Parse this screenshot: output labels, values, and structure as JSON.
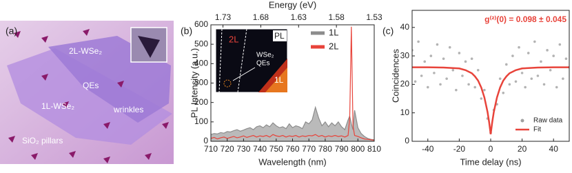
{
  "panel_a": {
    "label": "(a)",
    "labels": [
      "2L-WSe₂",
      "QEs",
      "1L-WSe₂",
      "wrinkles",
      "SiO₂ pillars"
    ]
  },
  "chart_data": [
    {
      "type": "line",
      "panel_label": "(b)",
      "xlabel": "Wavelength (nm)",
      "ylabel": "PL Intensity (a.u.)",
      "x2label": "Energy (eV)",
      "x": [
        710,
        712,
        714,
        716,
        718,
        720,
        722,
        724,
        726,
        728,
        730,
        732,
        734,
        736,
        738,
        740,
        742,
        744,
        746,
        748,
        750,
        752,
        754,
        756,
        758,
        760,
        762,
        764,
        766,
        768,
        770,
        772,
        774,
        776,
        778,
        780,
        782,
        784,
        786,
        788,
        790,
        792,
        794,
        795,
        796,
        797,
        798,
        800,
        802,
        804,
        806,
        808,
        810
      ],
      "series": [
        {
          "name": "1L",
          "color": "#8c8c8c",
          "area": true,
          "values": [
            35,
            40,
            38,
            45,
            42,
            50,
            48,
            55,
            60,
            52,
            58,
            65,
            70,
            60,
            75,
            80,
            70,
            85,
            75,
            95,
            80,
            70,
            75,
            65,
            90,
            70,
            80,
            75,
            65,
            100,
            90,
            110,
            175,
            120,
            80,
            100,
            75,
            95,
            80,
            100,
            75,
            60,
            110,
            130,
            90,
            60,
            160,
            70,
            40,
            25,
            15,
            10,
            8
          ]
        },
        {
          "name": "2L",
          "color": "#e8433a",
          "area": false,
          "values": [
            15,
            20,
            12,
            18,
            22,
            15,
            20,
            25,
            18,
            22,
            28,
            20,
            25,
            30,
            22,
            28,
            25,
            30,
            22,
            35,
            28,
            25,
            30,
            22,
            28,
            25,
            30,
            22,
            28,
            25,
            30,
            28,
            35,
            25,
            30,
            22,
            28,
            25,
            30,
            25,
            28,
            22,
            30,
            120,
            590,
            80,
            30,
            25,
            18,
            12,
            10,
            8,
            5
          ]
        }
      ],
      "xlim": [
        710,
        810
      ],
      "xticks": [
        710,
        720,
        730,
        740,
        750,
        760,
        770,
        780,
        790,
        800,
        810
      ],
      "ylim": [
        0,
        600
      ],
      "yticks": [
        0,
        100,
        200,
        300,
        400,
        500,
        600
      ],
      "x2lim": [
        1.746,
        1.53
      ],
      "x2ticks": [
        1.73,
        1.68,
        1.63,
        1.58,
        1.53
      ],
      "legend": "top-right",
      "inset_labels": [
        "2L",
        "PL",
        "WSe₂",
        "QEs",
        "1L"
      ]
    },
    {
      "type": "scatter",
      "panel_label": "(c)",
      "xlabel": "Time delay (ns)",
      "ylabel": "Coincidences",
      "annotation": "g⁽²⁾(0) = 0.098 ± 0.045",
      "series": [
        {
          "name": "Raw data",
          "color": "#a0a0a0",
          "kind": "scatter",
          "x": [
            -50,
            -48,
            -46,
            -44,
            -42,
            -40,
            -38,
            -36,
            -34,
            -32,
            -30,
            -28,
            -26,
            -24,
            -22,
            -20,
            -18,
            -16,
            -14,
            -12,
            -10,
            -8,
            -6,
            -4,
            -2,
            0,
            2,
            4,
            6,
            8,
            10,
            12,
            14,
            16,
            18,
            20,
            22,
            24,
            26,
            28,
            30,
            32,
            34,
            36,
            38,
            40,
            42,
            44,
            46,
            48,
            50
          ],
          "values": [
            32,
            21,
            35,
            23,
            28,
            19,
            30,
            24,
            34,
            20,
            29,
            22,
            33,
            25,
            18,
            31,
            23,
            28,
            20,
            29,
            19,
            25,
            15,
            18,
            8,
            3,
            11,
            13,
            22,
            17,
            27,
            20,
            30,
            21,
            33,
            24,
            19,
            31,
            22,
            35,
            23,
            28,
            20,
            32,
            25,
            30,
            19,
            34,
            22,
            29,
            26
          ]
        },
        {
          "name": "Fit",
          "color": "#e8433a",
          "kind": "line",
          "x": [
            -50,
            -40,
            -30,
            -20,
            -16,
            -12,
            -10,
            -8,
            -6,
            -4,
            -2,
            -1,
            0,
            1,
            2,
            4,
            6,
            8,
            10,
            12,
            16,
            20,
            30,
            40,
            50
          ],
          "values": [
            26.0,
            26.0,
            25.9,
            25.6,
            25.0,
            23.9,
            22.8,
            21.3,
            18.9,
            15.4,
            10.3,
            6.8,
            2.5,
            6.8,
            10.3,
            15.4,
            18.9,
            21.3,
            22.8,
            23.9,
            25.0,
            25.6,
            25.9,
            26.0,
            26.0
          ]
        }
      ],
      "xlim": [
        -50,
        50
      ],
      "xticks": [
        -40,
        -20,
        0,
        20,
        40
      ],
      "ylim": [
        0,
        46
      ],
      "yticks": [
        0,
        10,
        20,
        30,
        40
      ],
      "legend": "bottom-right"
    }
  ]
}
